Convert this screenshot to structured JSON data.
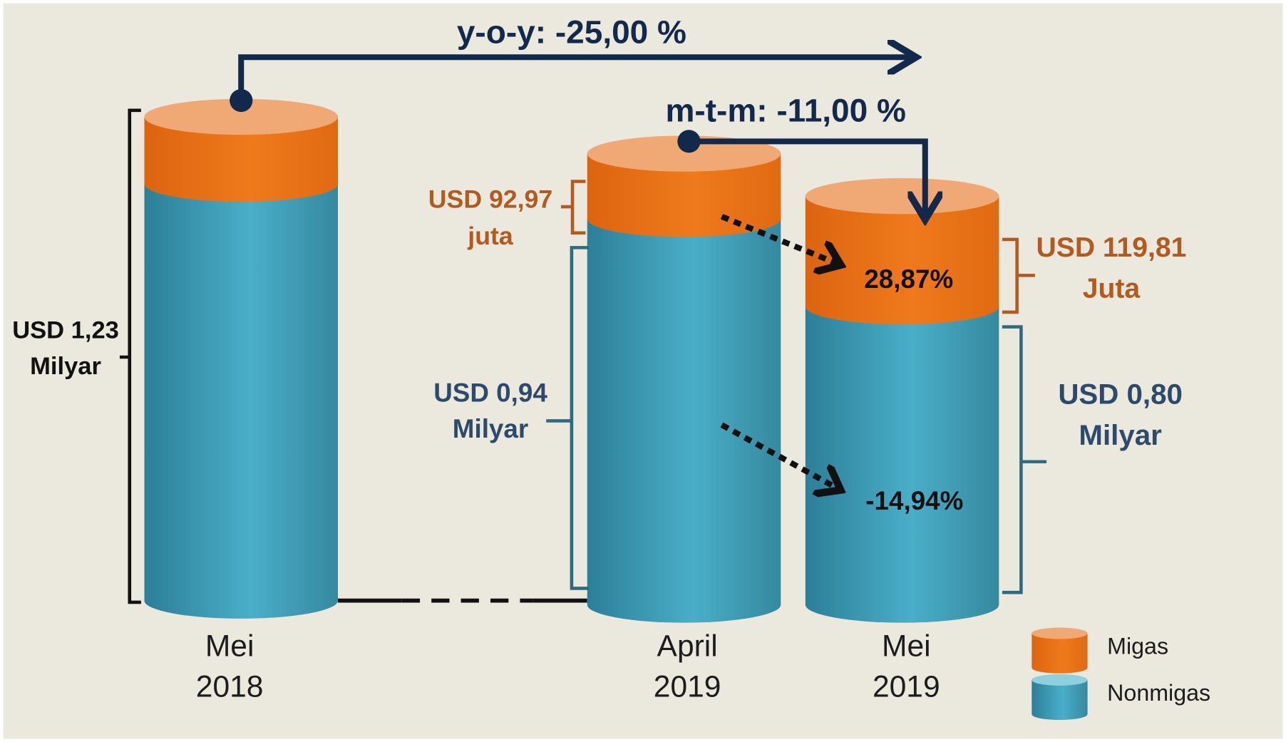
{
  "annotations": {
    "yoy": "y-o-y:  -25,00 %",
    "mtm": "m-t-m: -11,00 %",
    "migas_change": "28,87%",
    "nonmigas_change": "-14,94%"
  },
  "columns": [
    {
      "period": [
        "Mei",
        "2018"
      ]
    },
    {
      "period": [
        "April",
        "2019"
      ]
    },
    {
      "period": [
        "Mei",
        "2019"
      ]
    }
  ],
  "value_labels": {
    "total_mei_2018": [
      "USD 1,23",
      "Milyar"
    ],
    "migas_april_2019": [
      "USD 92,97",
      "juta"
    ],
    "nonmigas_april_2019": [
      "USD 0,94",
      "Milyar"
    ],
    "migas_mei_2019": [
      "USD 119,81",
      "Juta"
    ],
    "nonmigas_mei_2019": [
      "USD 0,80",
      "Milyar"
    ]
  },
  "legend": [
    "Migas",
    "Nonmigas"
  ]
}
